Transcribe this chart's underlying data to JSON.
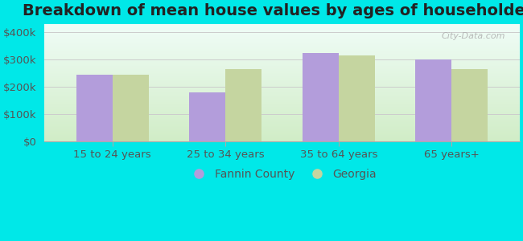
{
  "title": "Breakdown of mean house values by ages of householders",
  "categories": [
    "15 to 24 years",
    "25 to 34 years",
    "35 to 64 years",
    "65 years+"
  ],
  "fannin_values": [
    245000,
    180000,
    325000,
    300000
  ],
  "georgia_values": [
    245000,
    265000,
    315000,
    265000
  ],
  "fannin_color": "#b39ddb",
  "georgia_color": "#c5d5a0",
  "background_color": "#00e8e8",
  "yticks": [
    0,
    100000,
    200000,
    300000,
    400000
  ],
  "ytick_labels": [
    "$0",
    "$100k",
    "$200k",
    "$300k",
    "$400k"
  ],
  "ylim": [
    0,
    430000
  ],
  "bar_width": 0.32,
  "legend_fannin": "Fannin County",
  "legend_georgia": "Georgia",
  "title_fontsize": 14,
  "tick_fontsize": 9.5,
  "legend_fontsize": 10,
  "plot_bg_bottom": "#d4eecc",
  "plot_bg_top": "#f0faf8"
}
